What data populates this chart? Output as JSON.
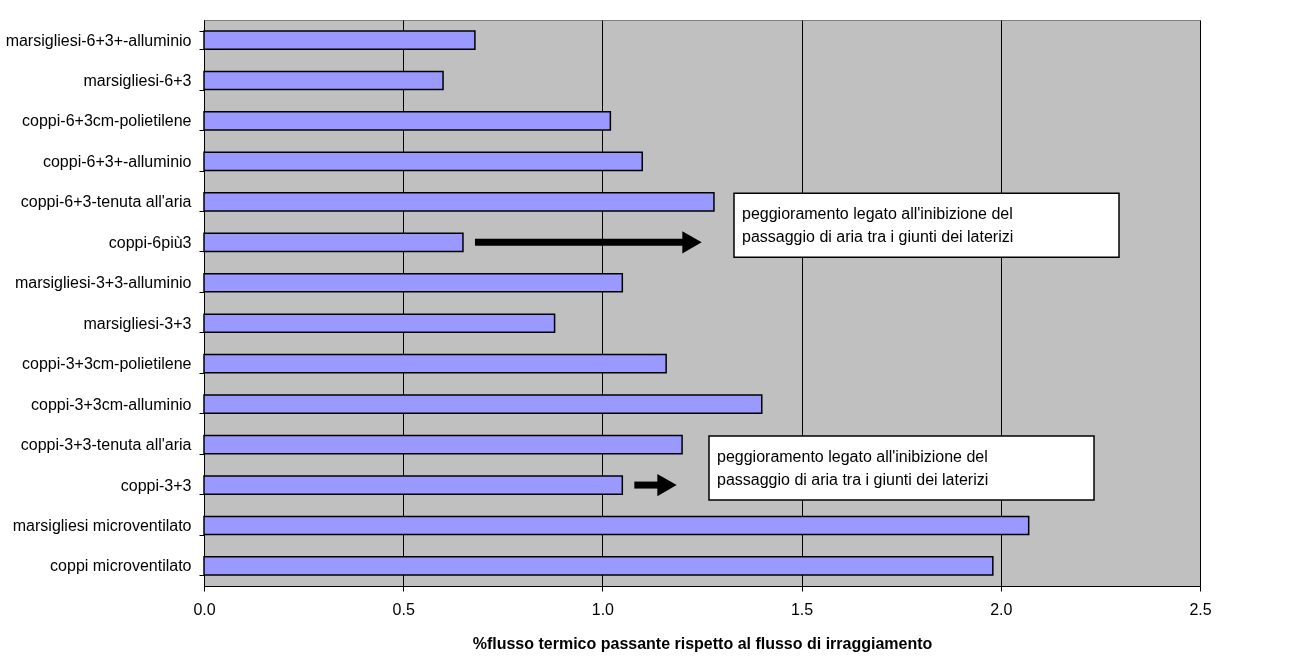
{
  "chart_data": {
    "type": "bar",
    "orientation": "horizontal",
    "categories": [
      "marsigliesi-6+3+-alluminio",
      "marsigliesi-6+3",
      "coppi-6+3cm-polietilene",
      "coppi-6+3+-alluminio",
      "coppi-6+3-tenuta all'aria",
      "coppi-6più3",
      "marsigliesi-3+3-alluminio",
      "marsigliesi-3+3",
      "coppi-3+3cm-polietilene",
      "coppi-3+3cm-alluminio",
      "coppi-3+3-tenuta all'aria ",
      "coppi-3+3",
      "marsigliesi microventilato",
      "coppi microventilato"
    ],
    "values": [
      0.68,
      0.6,
      1.02,
      1.1,
      1.28,
      0.65,
      1.05,
      0.88,
      1.16,
      1.4,
      1.2,
      1.05,
      2.07,
      1.98
    ],
    "color": "#9999ff",
    "xlim": [
      0,
      2.5
    ],
    "xticks": [
      {
        "value": 0,
        "label": "0.0"
      },
      0.5,
      {
        "value": 1,
        "label": "1.0"
      },
      1.5,
      {
        "value": 2,
        "label": "2.0"
      },
      2.5
    ],
    "xlabel": "%flusso termico passante rispetto al flusso di irraggiamento",
    "grid": "x",
    "legend": false,
    "annotations": [
      "peggioramento legato all'inibizione del\npassaggio di aria tra i giunti dei laterizi",
      "peggioramento legato all'inibizione del\npassaggio di aria tra i giunti dei laterizi"
    ]
  }
}
